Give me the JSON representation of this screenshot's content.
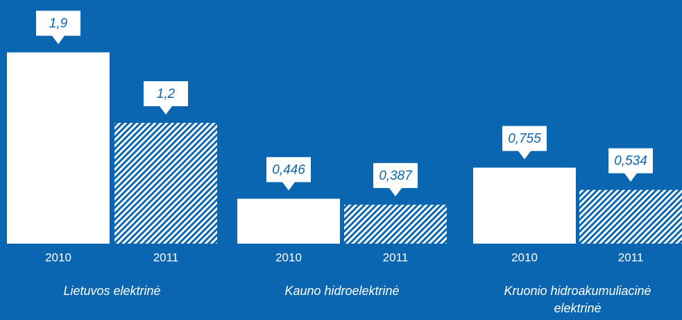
{
  "chart_data": {
    "type": "bar",
    "categories": [
      "Lietuvos elektrinė",
      "Kauno hidroelektrinė",
      "Kruonio hidroakumuliacinė elektrinė"
    ],
    "series": [
      {
        "name": "2010",
        "color": "#ffffff",
        "values": [
          1.9,
          0.446,
          0.755
        ],
        "value_labels": [
          "1,9",
          "0,446",
          "0,755"
        ]
      },
      {
        "name": "2011",
        "color": "#ffffff",
        "hatched": true,
        "values": [
          1.2,
          0.387,
          0.534
        ],
        "value_labels": [
          "1,2",
          "0,387",
          "0,534"
        ]
      }
    ]
  }
}
